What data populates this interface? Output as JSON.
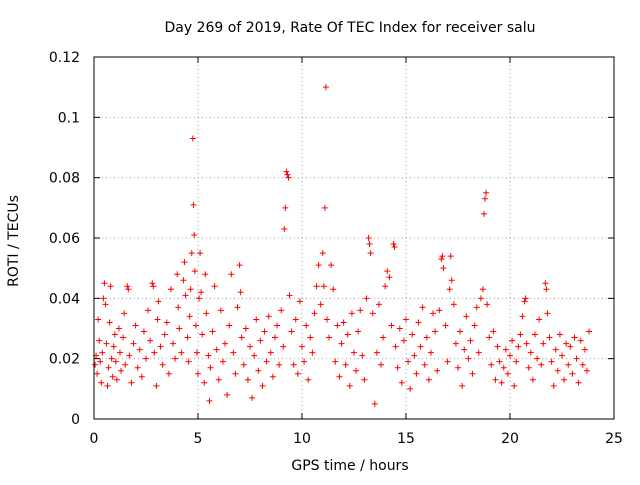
{
  "chart_data": {
    "type": "scatter",
    "title": "Day 269 of 2019, Rate Of TEC Index for receiver salu",
    "xlabel": "GPS time / hours",
    "ylabel": "ROTI / TECUs",
    "xlim": [
      0,
      25
    ],
    "ylim": [
      0,
      0.12
    ],
    "xticks": [
      0,
      5,
      10,
      15,
      20,
      25
    ],
    "yticks": [
      0,
      0.02,
      0.04,
      0.06,
      0.08,
      0.1,
      0.12
    ],
    "xtick_labels": [
      "0",
      "5",
      "10",
      "15",
      "20",
      "25"
    ],
    "ytick_labels": [
      "0",
      "0.02",
      "0.04",
      "0.06",
      "0.08",
      "0.1",
      "0.12"
    ],
    "grid": true,
    "marker": "plus",
    "color": "#ff0000",
    "series": [
      {
        "name": "ROTI",
        "points": [
          [
            0.05,
            0.018
          ],
          [
            0.1,
            0.021
          ],
          [
            0.15,
            0.015
          ],
          [
            0.2,
            0.033
          ],
          [
            0.25,
            0.026
          ],
          [
            0.3,
            0.019
          ],
          [
            0.35,
            0.012
          ],
          [
            0.4,
            0.022
          ],
          [
            0.45,
            0.04
          ],
          [
            0.5,
            0.045
          ],
          [
            0.55,
            0.038
          ],
          [
            0.6,
            0.025
          ],
          [
            0.65,
            0.011
          ],
          [
            0.7,
            0.017
          ],
          [
            0.75,
            0.032
          ],
          [
            0.8,
            0.044
          ],
          [
            0.85,
            0.02
          ],
          [
            0.9,
            0.014
          ],
          [
            0.95,
            0.024
          ],
          [
            1.0,
            0.028
          ],
          [
            1.05,
            0.019
          ],
          [
            1.1,
            0.013
          ],
          [
            1.2,
            0.03
          ],
          [
            1.25,
            0.022
          ],
          [
            1.3,
            0.016
          ],
          [
            1.4,
            0.027
          ],
          [
            1.45,
            0.035
          ],
          [
            1.5,
            0.018
          ],
          [
            1.6,
            0.044
          ],
          [
            1.65,
            0.043
          ],
          [
            1.7,
            0.021
          ],
          [
            1.8,
            0.012
          ],
          [
            1.9,
            0.025
          ],
          [
            2.0,
            0.031
          ],
          [
            2.1,
            0.017
          ],
          [
            2.2,
            0.023
          ],
          [
            2.3,
            0.014
          ],
          [
            2.4,
            0.029
          ],
          [
            2.5,
            0.02
          ],
          [
            2.6,
            0.036
          ],
          [
            2.7,
            0.026
          ],
          [
            2.8,
            0.045
          ],
          [
            2.85,
            0.044
          ],
          [
            2.9,
            0.022
          ],
          [
            3.0,
            0.011
          ],
          [
            3.05,
            0.033
          ],
          [
            3.1,
            0.039
          ],
          [
            3.2,
            0.024
          ],
          [
            3.3,
            0.018
          ],
          [
            3.4,
            0.028
          ],
          [
            3.5,
            0.032
          ],
          [
            3.6,
            0.015
          ],
          [
            3.7,
            0.043
          ],
          [
            3.8,
            0.025
          ],
          [
            3.9,
            0.02
          ],
          [
            4.0,
            0.048
          ],
          [
            4.05,
            0.037
          ],
          [
            4.1,
            0.03
          ],
          [
            4.2,
            0.022
          ],
          [
            4.3,
            0.046
          ],
          [
            4.35,
            0.052
          ],
          [
            4.4,
            0.041
          ],
          [
            4.5,
            0.027
          ],
          [
            4.55,
            0.019
          ],
          [
            4.6,
            0.034
          ],
          [
            4.65,
            0.043
          ],
          [
            4.7,
            0.055
          ],
          [
            4.75,
            0.093
          ],
          [
            4.78,
            0.071
          ],
          [
            4.82,
            0.061
          ],
          [
            4.85,
            0.049
          ],
          [
            4.9,
            0.031
          ],
          [
            4.95,
            0.022
          ],
          [
            5.0,
            0.015
          ],
          [
            5.05,
            0.04
          ],
          [
            5.1,
            0.055
          ],
          [
            5.15,
            0.042
          ],
          [
            5.2,
            0.028
          ],
          [
            5.3,
            0.012
          ],
          [
            5.35,
            0.048
          ],
          [
            5.4,
            0.035
          ],
          [
            5.5,
            0.021
          ],
          [
            5.55,
            0.006
          ],
          [
            5.6,
            0.017
          ],
          [
            5.7,
            0.029
          ],
          [
            5.8,
            0.044
          ],
          [
            5.9,
            0.023
          ],
          [
            6.0,
            0.013
          ],
          [
            6.1,
            0.036
          ],
          [
            6.2,
            0.019
          ],
          [
            6.3,
            0.025
          ],
          [
            6.4,
            0.008
          ],
          [
            6.5,
            0.031
          ],
          [
            6.6,
            0.048
          ],
          [
            6.7,
            0.022
          ],
          [
            6.8,
            0.015
          ],
          [
            6.9,
            0.037
          ],
          [
            7.0,
            0.051
          ],
          [
            7.05,
            0.042
          ],
          [
            7.1,
            0.027
          ],
          [
            7.2,
            0.018
          ],
          [
            7.3,
            0.03
          ],
          [
            7.4,
            0.013
          ],
          [
            7.5,
            0.024
          ],
          [
            7.6,
            0.007
          ],
          [
            7.7,
            0.021
          ],
          [
            7.8,
            0.033
          ],
          [
            7.9,
            0.016
          ],
          [
            8.0,
            0.026
          ],
          [
            8.1,
            0.011
          ],
          [
            8.2,
            0.029
          ],
          [
            8.3,
            0.019
          ],
          [
            8.4,
            0.034
          ],
          [
            8.5,
            0.022
          ],
          [
            8.6,
            0.014
          ],
          [
            8.7,
            0.027
          ],
          [
            8.8,
            0.031
          ],
          [
            8.9,
            0.018
          ],
          [
            9.0,
            0.036
          ],
          [
            9.1,
            0.024
          ],
          [
            9.15,
            0.063
          ],
          [
            9.2,
            0.07
          ],
          [
            9.25,
            0.082
          ],
          [
            9.3,
            0.081
          ],
          [
            9.35,
            0.08
          ],
          [
            9.4,
            0.041
          ],
          [
            9.5,
            0.029
          ],
          [
            9.6,
            0.018
          ],
          [
            9.7,
            0.033
          ],
          [
            9.8,
            0.015
          ],
          [
            9.9,
            0.039
          ],
          [
            10.0,
            0.024
          ],
          [
            10.1,
            0.019
          ],
          [
            10.2,
            0.031
          ],
          [
            10.3,
            0.013
          ],
          [
            10.4,
            0.027
          ],
          [
            10.5,
            0.022
          ],
          [
            10.6,
            0.035
          ],
          [
            10.7,
            0.044
          ],
          [
            10.8,
            0.051
          ],
          [
            10.9,
            0.038
          ],
          [
            11.0,
            0.055
          ],
          [
            11.05,
            0.044
          ],
          [
            11.1,
            0.07
          ],
          [
            11.15,
            0.11
          ],
          [
            11.2,
            0.033
          ],
          [
            11.3,
            0.027
          ],
          [
            11.4,
            0.051
          ],
          [
            11.5,
            0.043
          ],
          [
            11.6,
            0.019
          ],
          [
            11.7,
            0.031
          ],
          [
            11.8,
            0.014
          ],
          [
            11.9,
            0.025
          ],
          [
            12.0,
            0.032
          ],
          [
            12.1,
            0.018
          ],
          [
            12.2,
            0.028
          ],
          [
            12.3,
            0.011
          ],
          [
            12.4,
            0.035
          ],
          [
            12.5,
            0.022
          ],
          [
            12.6,
            0.016
          ],
          [
            12.7,
            0.029
          ],
          [
            12.8,
            0.036
          ],
          [
            12.9,
            0.021
          ],
          [
            13.0,
            0.013
          ],
          [
            13.1,
            0.04
          ],
          [
            13.2,
            0.06
          ],
          [
            13.25,
            0.058
          ],
          [
            13.3,
            0.055
          ],
          [
            13.4,
            0.035
          ],
          [
            13.5,
            0.005
          ],
          [
            13.6,
            0.022
          ],
          [
            13.7,
            0.038
          ],
          [
            13.8,
            0.018
          ],
          [
            13.9,
            0.027
          ],
          [
            14.0,
            0.044
          ],
          [
            14.1,
            0.049
          ],
          [
            14.2,
            0.047
          ],
          [
            14.3,
            0.031
          ],
          [
            14.4,
            0.058
          ],
          [
            14.45,
            0.057
          ],
          [
            14.5,
            0.024
          ],
          [
            14.6,
            0.017
          ],
          [
            14.7,
            0.03
          ],
          [
            14.8,
            0.012
          ],
          [
            14.9,
            0.026
          ],
          [
            15.0,
            0.033
          ],
          [
            15.1,
            0.019
          ],
          [
            15.2,
            0.01
          ],
          [
            15.3,
            0.028
          ],
          [
            15.4,
            0.021
          ],
          [
            15.5,
            0.015
          ],
          [
            15.6,
            0.032
          ],
          [
            15.7,
            0.024
          ],
          [
            15.8,
            0.037
          ],
          [
            15.9,
            0.018
          ],
          [
            16.0,
            0.027
          ],
          [
            16.1,
            0.013
          ],
          [
            16.2,
            0.022
          ],
          [
            16.3,
            0.035
          ],
          [
            16.4,
            0.029
          ],
          [
            16.5,
            0.016
          ],
          [
            16.6,
            0.036
          ],
          [
            16.7,
            0.053
          ],
          [
            16.75,
            0.054
          ],
          [
            16.8,
            0.05
          ],
          [
            16.9,
            0.031
          ],
          [
            17.0,
            0.019
          ],
          [
            17.1,
            0.043
          ],
          [
            17.15,
            0.054
          ],
          [
            17.2,
            0.046
          ],
          [
            17.3,
            0.038
          ],
          [
            17.4,
            0.025
          ],
          [
            17.5,
            0.017
          ],
          [
            17.6,
            0.029
          ],
          [
            17.7,
            0.011
          ],
          [
            17.8,
            0.023
          ],
          [
            17.9,
            0.034
          ],
          [
            18.0,
            0.02
          ],
          [
            18.1,
            0.026
          ],
          [
            18.2,
            0.015
          ],
          [
            18.3,
            0.031
          ],
          [
            18.4,
            0.037
          ],
          [
            18.5,
            0.022
          ],
          [
            18.6,
            0.04
          ],
          [
            18.7,
            0.043
          ],
          [
            18.75,
            0.068
          ],
          [
            18.8,
            0.073
          ],
          [
            18.85,
            0.075
          ],
          [
            18.9,
            0.038
          ],
          [
            19.0,
            0.027
          ],
          [
            19.1,
            0.018
          ],
          [
            19.2,
            0.029
          ],
          [
            19.3,
            0.013
          ],
          [
            19.4,
            0.024
          ],
          [
            19.5,
            0.019
          ],
          [
            19.6,
            0.012
          ],
          [
            19.7,
            0.017
          ],
          [
            19.8,
            0.023
          ],
          [
            19.9,
            0.015
          ],
          [
            20.0,
            0.021
          ],
          [
            20.1,
            0.026
          ],
          [
            20.2,
            0.011
          ],
          [
            20.3,
            0.019
          ],
          [
            20.4,
            0.024
          ],
          [
            20.5,
            0.028
          ],
          [
            20.6,
            0.034
          ],
          [
            20.7,
            0.039
          ],
          [
            20.75,
            0.04
          ],
          [
            20.8,
            0.025
          ],
          [
            20.9,
            0.017
          ],
          [
            21.0,
            0.022
          ],
          [
            21.1,
            0.013
          ],
          [
            21.2,
            0.028
          ],
          [
            21.3,
            0.02
          ],
          [
            21.4,
            0.033
          ],
          [
            21.5,
            0.018
          ],
          [
            21.6,
            0.025
          ],
          [
            21.7,
            0.045
          ],
          [
            21.75,
            0.043
          ],
          [
            21.8,
            0.035
          ],
          [
            21.9,
            0.027
          ],
          [
            22.0,
            0.019
          ],
          [
            22.1,
            0.011
          ],
          [
            22.2,
            0.023
          ],
          [
            22.3,
            0.016
          ],
          [
            22.4,
            0.028
          ],
          [
            22.5,
            0.021
          ],
          [
            22.6,
            0.013
          ],
          [
            22.7,
            0.025
          ],
          [
            22.8,
            0.018
          ],
          [
            22.9,
            0.024
          ],
          [
            23.0,
            0.015
          ],
          [
            23.1,
            0.027
          ],
          [
            23.2,
            0.02
          ],
          [
            23.3,
            0.012
          ],
          [
            23.4,
            0.026
          ],
          [
            23.5,
            0.018
          ],
          [
            23.6,
            0.023
          ],
          [
            23.7,
            0.016
          ],
          [
            23.8,
            0.029
          ]
        ]
      }
    ]
  }
}
